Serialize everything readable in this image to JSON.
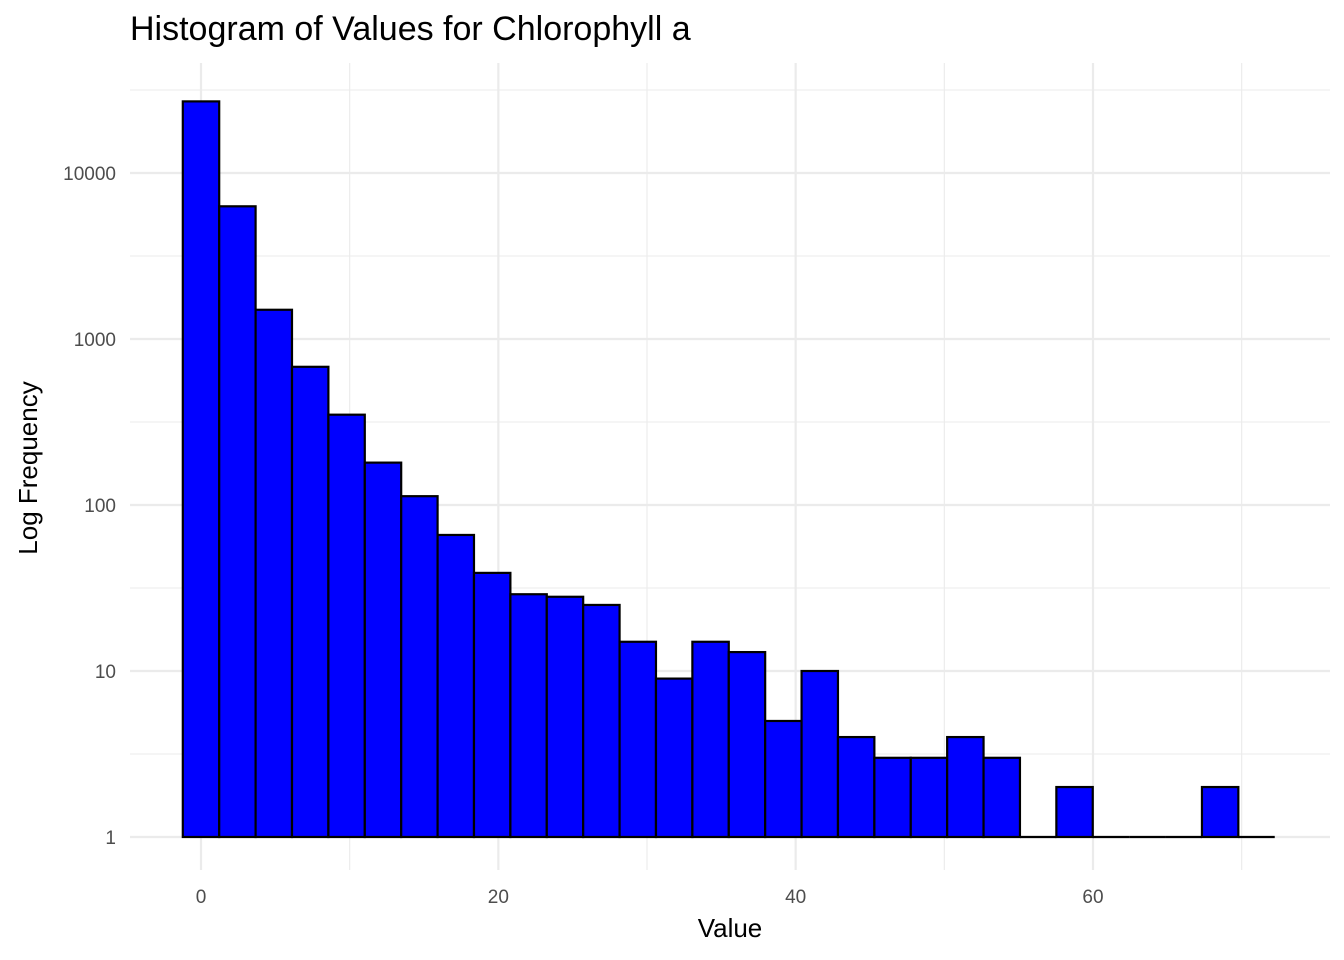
{
  "chart_data": {
    "type": "bar",
    "title": "Histogram of Values for Chlorophyll a",
    "xlabel": "Value",
    "ylabel": "Log Frequency",
    "y_scale": "log10",
    "bin_width": 2.4483,
    "bins": [
      {
        "center": 0.0,
        "count": 27000
      },
      {
        "center": 2.4483,
        "count": 6300
      },
      {
        "center": 4.8966,
        "count": 1500
      },
      {
        "center": 7.3449,
        "count": 680
      },
      {
        "center": 9.7932,
        "count": 350
      },
      {
        "center": 12.2415,
        "count": 180
      },
      {
        "center": 14.6898,
        "count": 113
      },
      {
        "center": 17.1381,
        "count": 66
      },
      {
        "center": 19.5864,
        "count": 39
      },
      {
        "center": 22.0347,
        "count": 29
      },
      {
        "center": 24.483,
        "count": 28
      },
      {
        "center": 26.9313,
        "count": 25
      },
      {
        "center": 29.3796,
        "count": 15
      },
      {
        "center": 31.8279,
        "count": 9
      },
      {
        "center": 34.2762,
        "count": 15
      },
      {
        "center": 36.7245,
        "count": 13
      },
      {
        "center": 39.1728,
        "count": 5
      },
      {
        "center": 41.6211,
        "count": 10
      },
      {
        "center": 44.0694,
        "count": 4
      },
      {
        "center": 46.5177,
        "count": 3
      },
      {
        "center": 48.966,
        "count": 3
      },
      {
        "center": 51.4143,
        "count": 4
      },
      {
        "center": 53.8626,
        "count": 3
      },
      {
        "center": 56.3109,
        "count": 1
      },
      {
        "center": 58.7592,
        "count": 2
      },
      {
        "center": 61.2075,
        "count": 1
      },
      {
        "center": 63.6558,
        "count": 1
      },
      {
        "center": 66.1041,
        "count": 1
      },
      {
        "center": 68.5524,
        "count": 2
      },
      {
        "center": 71.0007,
        "count": 1
      }
    ],
    "x_ticks": [
      0,
      20,
      40,
      60
    ],
    "y_ticks": [
      1,
      10,
      100,
      1000,
      10000
    ],
    "xlim": [
      -4.9,
      73.4
    ],
    "ylim_log10": [
      -0.2,
      4.5
    ],
    "grid": true,
    "bar_fill": "#0000ff",
    "bar_stroke": "#000000",
    "grid_color": "#ebebeb"
  }
}
